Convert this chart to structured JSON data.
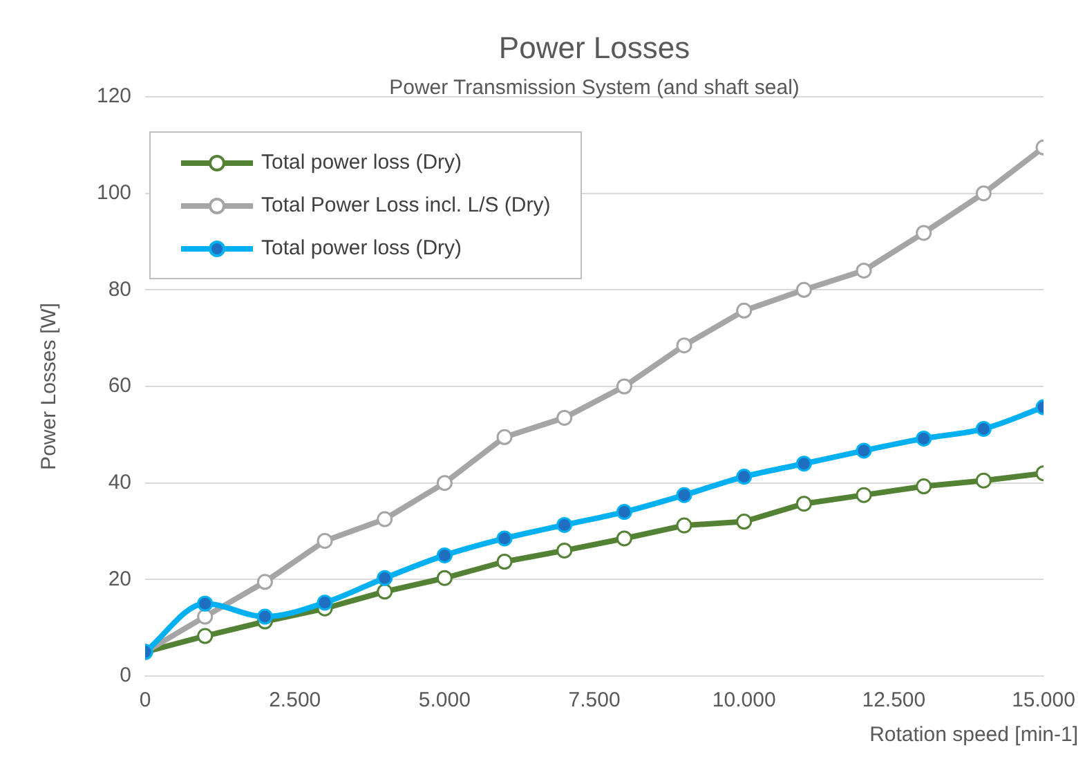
{
  "chart_data": {
    "type": "line",
    "title": "Power Losses",
    "subtitle": "Power Transmission System (and shaft seal)",
    "xlabel": "Rotation speed [min-1]",
    "ylabel": "Power Losses [W]",
    "x": [
      0,
      1000,
      2000,
      3000,
      4000,
      5000,
      6000,
      7000,
      8000,
      9000,
      10000,
      11000,
      12000,
      13000,
      14000,
      15000
    ],
    "xlim": [
      0,
      15000
    ],
    "xticks": [
      0,
      {
        "value": 2500,
        "label": "2.500"
      },
      {
        "value": 5000,
        "label": "5.000"
      },
      {
        "value": 7500,
        "label": "7.500"
      },
      {
        "value": 10000,
        "label": "10.000"
      },
      {
        "value": 12500,
        "label": "12.500"
      },
      {
        "value": 15000,
        "label": "15.000"
      }
    ],
    "ylim": [
      0,
      120
    ],
    "yticks": [
      0,
      20,
      40,
      60,
      80,
      100,
      120
    ],
    "grid": "y",
    "legend": "top left",
    "marker": "circle",
    "line_style": "solid",
    "series": [
      {
        "name": "Total power loss (Dry)",
        "color": "#548235",
        "values": [
          5,
          8.3,
          11.3,
          14,
          17.5,
          20.3,
          23.7,
          26,
          28.5,
          31.2,
          32,
          35.7,
          37.5,
          39.3,
          40.5,
          42
        ]
      },
      {
        "name": "Total Power Loss incl. L/S (Dry)",
        "color": "#a5a5a5",
        "values": [
          5,
          12.3,
          19.5,
          28,
          32.5,
          40,
          49.5,
          53.5,
          60,
          68.5,
          75.7,
          80,
          84,
          91.8,
          100,
          109.5
        ]
      },
      {
        "name": "Total power loss (Dry)",
        "color": "#00b0f0",
        "values": [
          5,
          15,
          12.3,
          15.2,
          20.3,
          25,
          28.5,
          31.3,
          34,
          37.5,
          41.3,
          44,
          46.7,
          49.2,
          51.2,
          55.7
        ]
      }
    ]
  }
}
